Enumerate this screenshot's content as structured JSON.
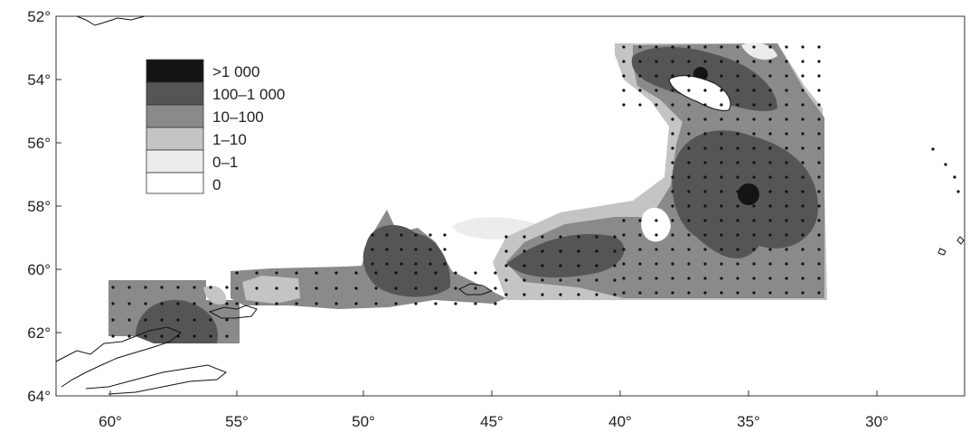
{
  "map": {
    "x_axis": {
      "ticks": [
        "60°",
        "55°",
        "50°",
        "45°",
        "40°",
        "35°",
        "30°"
      ]
    },
    "y_axis": {
      "ticks": [
        "52°",
        "54°",
        "56°",
        "58°",
        "60°",
        "62°",
        "64°"
      ]
    },
    "legend": {
      "entries": [
        {
          "label": ">1 000",
          "color": "#141414"
        },
        {
          "label": "100–1 000",
          "color": "#555555"
        },
        {
          "label": "10–100",
          "color": "#8a8a8a"
        },
        {
          "label": "1–10",
          "color": "#c4c4c4"
        },
        {
          "label": "0–1",
          "color": "#ececec"
        },
        {
          "label": "0",
          "color": "#ffffff"
        }
      ]
    },
    "colors": {
      "frame": "#333333",
      "coast": "#111111",
      "station": "#111111"
    }
  }
}
